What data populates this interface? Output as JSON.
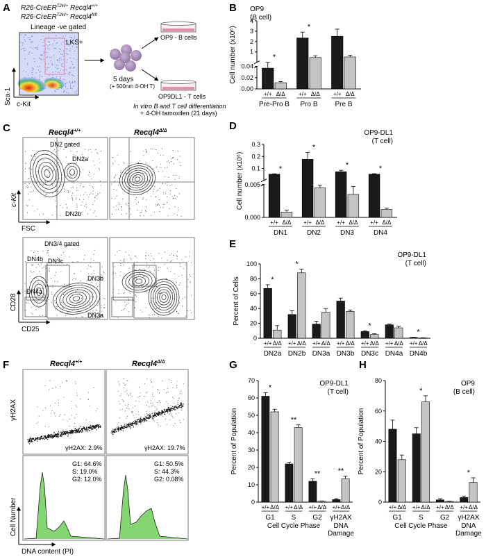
{
  "colors": {
    "wt": "#1a1a1a",
    "ko": "#c4c4c4",
    "gate_pink": "#e58fb4",
    "cell_purple": "#a78fb8",
    "hist_green": "#6fcf5b",
    "dish_pink": "#e28fb0"
  },
  "panels": {
    "A": {
      "letter": "A",
      "genotype1": "R26-CreER",
      "genotype1_sup": "T2ki/+",
      "genotype1_gene": "Recql4",
      "genotype1_gene_sup": "+/+",
      "genotype2": "R26-CreER",
      "genotype2_sup": "T2ki/+",
      "genotype2_gene": "Recql4",
      "genotype2_gene_sup": "fl/fl",
      "gate": "Lineage -ve gated",
      "lks": "LKS+",
      "yaxis": "Sca-1",
      "xaxis": "c-Kit",
      "days": "5 days",
      "treatment": "(+ 500nm 4-OH T)",
      "op9": "OP9 - B cells",
      "op9dl1": "OP9DL1 - T cells",
      "note1": "In vitro B and T cell differentiation",
      "note2": "+ 4-OH tamoxifen (21 days)"
    },
    "C": {
      "letter": "C",
      "col1": "Recql4",
      "col1_sup": "+/+",
      "col2": "Recql4",
      "col2_sup": "Δ/Δ",
      "top_gate": "DN2 gated",
      "dn2a": "DN2a",
      "dn2b": "DN2b",
      "top_y": "c-Kit",
      "top_x": "FSC",
      "bottom_gate": "DN3/4 gated",
      "dn4b": "DN4b",
      "dn3c": "DN3c",
      "dn3b": "DN3b",
      "dn4a": "DN4a",
      "dn3a": "DN3a",
      "bottom_y": "CD28",
      "bottom_x": "CD25"
    },
    "F": {
      "letter": "F",
      "col1": "Recql4",
      "col1_sup": "+/+",
      "col2": "Recql4",
      "col2_sup": "Δ/Δ",
      "top_y": "γH2AX",
      "gh_wt": "γH2AX: 2.9%",
      "gh_ko": "γH2AX: 19.7%",
      "wt_g1": "G1: 64.6%",
      "wt_s": "S:  19.0%",
      "wt_g2": "G2: 12.0%",
      "ko_g1": "G1: 50.5%",
      "ko_s": "S:  44.3%",
      "ko_g2": "G2: 0.08%",
      "hist_y": "Cell Number",
      "hist_x": "DNA content (PI)"
    }
  },
  "chart_data": [
    {
      "panel": "B",
      "type": "bar",
      "title": "OP9",
      "subtitle": "(B cell)",
      "ylabel": "Cell number (x10⁶)",
      "groups": [
        "Pre-Pro B",
        "Pro B",
        "Pre B"
      ],
      "genotypes": [
        "+/+",
        "Δ/Δ"
      ],
      "y_lower_ticks": [
        "0.00",
        "0.02",
        "0.04"
      ],
      "y_upper_ticks": [
        "1",
        "2",
        "3",
        "4"
      ],
      "series": [
        {
          "name": "+/+",
          "values": [
            0.037,
            2.55,
            2.7
          ],
          "errors": [
            0.006,
            0.5,
            0.6
          ]
        },
        {
          "name": "Δ/Δ",
          "values": [
            0.011,
            0.9,
            0.95
          ],
          "errors": [
            0.002,
            0.15,
            0.15
          ]
        }
      ],
      "significance": [
        "*",
        "*",
        ""
      ]
    },
    {
      "panel": "D",
      "type": "bar",
      "title": "OP9-DL1",
      "subtitle": "(T cell)",
      "ylabel": "Cell number (x10⁶)",
      "groups": [
        "DN1",
        "DN2",
        "DN3",
        "DN4"
      ],
      "genotypes": [
        "+/+",
        "Δ/Δ"
      ],
      "y_lower_ticks": [
        "0.000",
        "0.005"
      ],
      "y_upper_ticks": [
        "0.1",
        "0.2",
        "0.3"
      ],
      "series": [
        {
          "name": "+/+",
          "values": [
            0.06,
            0.18,
            0.08,
            0.06
          ],
          "errors": [
            0.003,
            0.055,
            0.012,
            0.004
          ]
        },
        {
          "name": "Δ/Δ",
          "values": [
            0.0008,
            0.0045,
            0.0035,
            0.0012
          ],
          "errors": [
            0.0003,
            0.0004,
            0.0012,
            0.0002
          ]
        }
      ],
      "significance": [
        "*",
        "*",
        "*",
        "*"
      ]
    },
    {
      "panel": "E",
      "type": "bar",
      "title": "OP9-DL1",
      "subtitle": "(T cell)",
      "ylabel": "Percent of Cells",
      "groups": [
        "DN2a",
        "DN2b",
        "DN3a",
        "DN3b",
        "DN3c",
        "DN4a",
        "DN4b"
      ],
      "genotypes": [
        "+/+",
        "Δ/Δ"
      ],
      "yticks": [
        "0",
        "20",
        "40",
        "60",
        "80",
        "100"
      ],
      "ylim": [
        0,
        100
      ],
      "series": [
        {
          "name": "+/+",
          "values": [
            67,
            32,
            19,
            50,
            9,
            18,
            1
          ],
          "errors": [
            5,
            5,
            4,
            4,
            1,
            1,
            0.3
          ]
        },
        {
          "name": "Δ/Δ",
          "values": [
            11,
            88,
            35,
            36,
            5,
            14,
            0.5
          ],
          "errors": [
            6,
            5,
            5,
            2,
            1,
            2,
            0.2
          ]
        }
      ],
      "significance": [
        "*",
        "*",
        "",
        "",
        "*",
        "",
        "*"
      ]
    },
    {
      "panel": "G",
      "type": "bar",
      "title": "OP9-DL1",
      "subtitle": "(T cell)",
      "ylabel": "Percent of Population",
      "xlabel": "Cell Cycle Phase",
      "extra_label": "DNA",
      "extra_label2": "Damage",
      "groups": [
        "G1",
        "S",
        "G2",
        "γH2AX"
      ],
      "genotypes": [
        "+/+",
        "Δ/Δ"
      ],
      "yticks": [
        "0",
        "10",
        "20",
        "30",
        "40",
        "50",
        "60",
        "70"
      ],
      "ylim": [
        0,
        70
      ],
      "series": [
        {
          "name": "+/+",
          "values": [
            61,
            22,
            12,
            1.5
          ],
          "errors": [
            2,
            1,
            1.5,
            0.5
          ]
        },
        {
          "name": "Δ/Δ",
          "values": [
            52,
            43,
            0.5,
            13.5
          ],
          "errors": [
            1.5,
            1.5,
            0.2,
            1.5
          ]
        }
      ],
      "significance": [
        "*",
        "**",
        "**",
        "**"
      ]
    },
    {
      "panel": "H",
      "type": "bar",
      "title": "OP9",
      "subtitle": "(B cell)",
      "ylabel": "Percent of Population",
      "xlabel": "Cell Cycle Phase",
      "extra_label": "DNA",
      "extra_label2": "Damage",
      "groups": [
        "G1",
        "S",
        "G2",
        "γH2AX"
      ],
      "genotypes": [
        "+/+",
        "Δ/Δ"
      ],
      "yticks": [
        "0",
        "20",
        "40",
        "60",
        "80"
      ],
      "ylim": [
        0,
        80
      ],
      "series": [
        {
          "name": "+/+",
          "values": [
            48,
            45,
            1.5,
            3
          ],
          "errors": [
            6,
            4,
            0.8,
            1
          ]
        },
        {
          "name": "Δ/Δ",
          "values": [
            28,
            66,
            0.5,
            13
          ],
          "errors": [
            3,
            4,
            0.2,
            3
          ]
        }
      ],
      "significance": [
        "",
        "*",
        "",
        "*"
      ]
    }
  ]
}
